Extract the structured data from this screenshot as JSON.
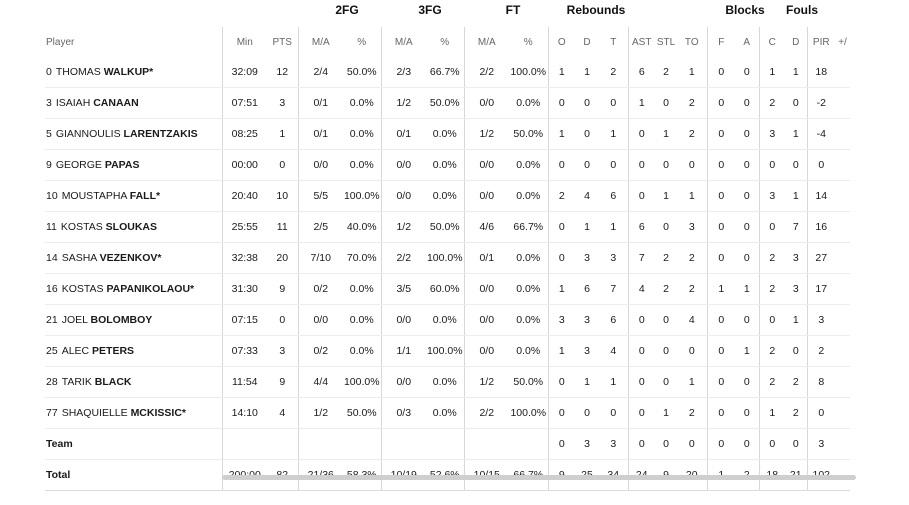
{
  "groups": {
    "fg2": "2FG",
    "fg3": "3FG",
    "ft": "FT",
    "reb": "Rebounds",
    "blk": "Blocks",
    "fouls": "Fouls"
  },
  "headers": {
    "player": "Player",
    "min": "Min",
    "pts": "PTS",
    "ma2": "M/A",
    "pct2": "%",
    "ma3": "M/A",
    "pct3": "%",
    "maft": "M/A",
    "pctft": "%",
    "o": "O",
    "d": "D",
    "t": "T",
    "ast": "AST",
    "stl": "STL",
    "to": "TO",
    "bf": "F",
    "ba": "A",
    "fc": "C",
    "fd": "D",
    "pir": "PIR",
    "pm": "+/"
  },
  "players": [
    {
      "num": "0",
      "first": "THOMAS",
      "last": "WALKUP*",
      "min": "32:09",
      "pts": "12",
      "ma2": "2/4",
      "pct2": "50.0%",
      "ma3": "2/3",
      "pct3": "66.7%",
      "maft": "2/2",
      "pctft": "100.0%",
      "o": "1",
      "d": "1",
      "t": "2",
      "ast": "6",
      "stl": "2",
      "to": "1",
      "bf": "0",
      "ba": "0",
      "fc": "1",
      "fd": "1",
      "pir": "18",
      "pm": ""
    },
    {
      "num": "3",
      "first": "ISAIAH",
      "last": "CANAAN",
      "min": "07:51",
      "pts": "3",
      "ma2": "0/1",
      "pct2": "0.0%",
      "ma3": "1/2",
      "pct3": "50.0%",
      "maft": "0/0",
      "pctft": "0.0%",
      "o": "0",
      "d": "0",
      "t": "0",
      "ast": "1",
      "stl": "0",
      "to": "2",
      "bf": "0",
      "ba": "0",
      "fc": "2",
      "fd": "0",
      "pir": "-2",
      "pm": ""
    },
    {
      "num": "5",
      "first": "GIANNOULIS",
      "last": "LARENTZAKIS",
      "min": "08:25",
      "pts": "1",
      "ma2": "0/1",
      "pct2": "0.0%",
      "ma3": "0/1",
      "pct3": "0.0%",
      "maft": "1/2",
      "pctft": "50.0%",
      "o": "1",
      "d": "0",
      "t": "1",
      "ast": "0",
      "stl": "1",
      "to": "2",
      "bf": "0",
      "ba": "0",
      "fc": "3",
      "fd": "1",
      "pir": "-4",
      "pm": ""
    },
    {
      "num": "9",
      "first": "GEORGE",
      "last": "PAPAS",
      "min": "00:00",
      "pts": "0",
      "ma2": "0/0",
      "pct2": "0.0%",
      "ma3": "0/0",
      "pct3": "0.0%",
      "maft": "0/0",
      "pctft": "0.0%",
      "o": "0",
      "d": "0",
      "t": "0",
      "ast": "0",
      "stl": "0",
      "to": "0",
      "bf": "0",
      "ba": "0",
      "fc": "0",
      "fd": "0",
      "pir": "0",
      "pm": ""
    },
    {
      "num": "10",
      "first": "MOUSTAPHA",
      "last": "FALL*",
      "min": "20:40",
      "pts": "10",
      "ma2": "5/5",
      "pct2": "100.0%",
      "ma3": "0/0",
      "pct3": "0.0%",
      "maft": "0/0",
      "pctft": "0.0%",
      "o": "2",
      "d": "4",
      "t": "6",
      "ast": "0",
      "stl": "1",
      "to": "1",
      "bf": "0",
      "ba": "0",
      "fc": "3",
      "fd": "1",
      "pir": "14",
      "pm": ""
    },
    {
      "num": "11",
      "first": "KOSTAS",
      "last": "SLOUKAS",
      "min": "25:55",
      "pts": "11",
      "ma2": "2/5",
      "pct2": "40.0%",
      "ma3": "1/2",
      "pct3": "50.0%",
      "maft": "4/6",
      "pctft": "66.7%",
      "o": "0",
      "d": "1",
      "t": "1",
      "ast": "6",
      "stl": "0",
      "to": "3",
      "bf": "0",
      "ba": "0",
      "fc": "0",
      "fd": "7",
      "pir": "16",
      "pm": ""
    },
    {
      "num": "14",
      "first": "SASHA",
      "last": "VEZENKOV*",
      "min": "32:38",
      "pts": "20",
      "ma2": "7/10",
      "pct2": "70.0%",
      "ma3": "2/2",
      "pct3": "100.0%",
      "maft": "0/1",
      "pctft": "0.0%",
      "o": "0",
      "d": "3",
      "t": "3",
      "ast": "7",
      "stl": "2",
      "to": "2",
      "bf": "0",
      "ba": "0",
      "fc": "2",
      "fd": "3",
      "pir": "27",
      "pm": ""
    },
    {
      "num": "16",
      "first": "KOSTAS",
      "last": "PAPANIKOLAOU*",
      "min": "31:30",
      "pts": "9",
      "ma2": "0/2",
      "pct2": "0.0%",
      "ma3": "3/5",
      "pct3": "60.0%",
      "maft": "0/0",
      "pctft": "0.0%",
      "o": "1",
      "d": "6",
      "t": "7",
      "ast": "4",
      "stl": "2",
      "to": "2",
      "bf": "1",
      "ba": "1",
      "fc": "2",
      "fd": "3",
      "pir": "17",
      "pm": ""
    },
    {
      "num": "21",
      "first": "JOEL",
      "last": "BOLOMBOY",
      "min": "07:15",
      "pts": "0",
      "ma2": "0/0",
      "pct2": "0.0%",
      "ma3": "0/0",
      "pct3": "0.0%",
      "maft": "0/0",
      "pctft": "0.0%",
      "o": "3",
      "d": "3",
      "t": "6",
      "ast": "0",
      "stl": "0",
      "to": "4",
      "bf": "0",
      "ba": "0",
      "fc": "0",
      "fd": "1",
      "pir": "3",
      "pm": ""
    },
    {
      "num": "25",
      "first": "ALEC",
      "last": "PETERS",
      "min": "07:33",
      "pts": "3",
      "ma2": "0/2",
      "pct2": "0.0%",
      "ma3": "1/1",
      "pct3": "100.0%",
      "maft": "0/0",
      "pctft": "0.0%",
      "o": "1",
      "d": "3",
      "t": "4",
      "ast": "0",
      "stl": "0",
      "to": "0",
      "bf": "0",
      "ba": "1",
      "fc": "2",
      "fd": "0",
      "pir": "2",
      "pm": ""
    },
    {
      "num": "28",
      "first": "TARIK",
      "last": "BLACK",
      "min": "11:54",
      "pts": "9",
      "ma2": "4/4",
      "pct2": "100.0%",
      "ma3": "0/0",
      "pct3": "0.0%",
      "maft": "1/2",
      "pctft": "50.0%",
      "o": "0",
      "d": "1",
      "t": "1",
      "ast": "0",
      "stl": "0",
      "to": "1",
      "bf": "0",
      "ba": "0",
      "fc": "2",
      "fd": "2",
      "pir": "8",
      "pm": ""
    },
    {
      "num": "77",
      "first": "SHAQUIELLE",
      "last": "MCKISSIC*",
      "min": "14:10",
      "pts": "4",
      "ma2": "1/2",
      "pct2": "50.0%",
      "ma3": "0/3",
      "pct3": "0.0%",
      "maft": "2/2",
      "pctft": "100.0%",
      "o": "0",
      "d": "0",
      "t": "0",
      "ast": "0",
      "stl": "1",
      "to": "2",
      "bf": "0",
      "ba": "0",
      "fc": "1",
      "fd": "2",
      "pir": "0",
      "pm": ""
    }
  ],
  "team": {
    "label": "Team",
    "min": "",
    "pts": "",
    "ma2": "",
    "pct2": "",
    "ma3": "",
    "pct3": "",
    "maft": "",
    "pctft": "",
    "o": "0",
    "d": "3",
    "t": "3",
    "ast": "0",
    "stl": "0",
    "to": "0",
    "bf": "0",
    "ba": "0",
    "fc": "0",
    "fd": "0",
    "pir": "3",
    "pm": ""
  },
  "total": {
    "label": "Total",
    "min": "200:00",
    "pts": "82",
    "ma2": "21/36",
    "pct2": "58.3%",
    "ma3": "10/19",
    "pct3": "52.6%",
    "maft": "10/15",
    "pctft": "66.7%",
    "o": "9",
    "d": "25",
    "t": "34",
    "ast": "24",
    "stl": "9",
    "to": "20",
    "bf": "1",
    "ba": "2",
    "fc": "18",
    "fd": "21",
    "pir": "102",
    "pm": ""
  }
}
